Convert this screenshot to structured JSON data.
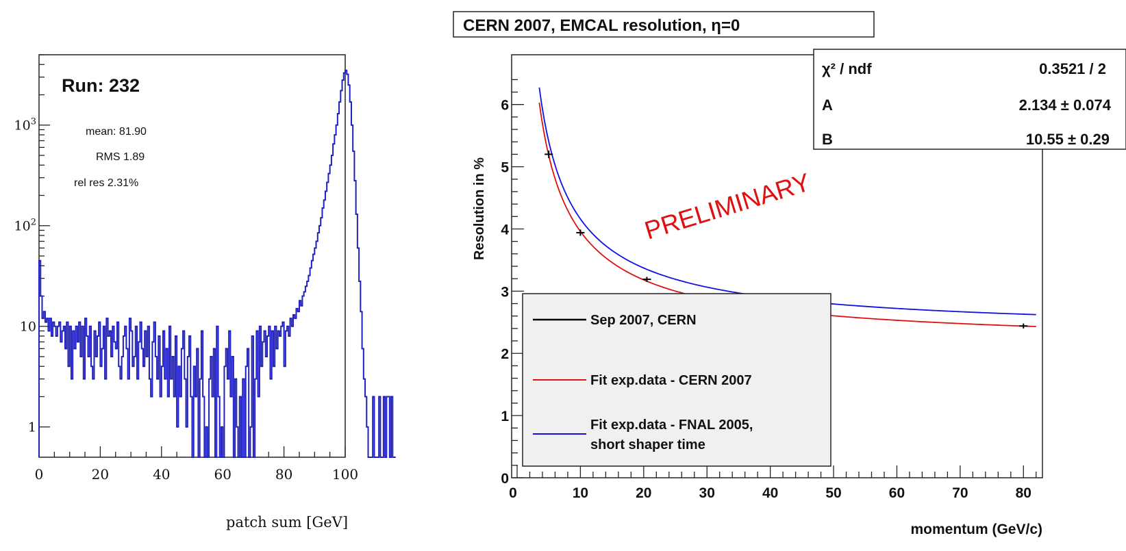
{
  "chart_data": [
    {
      "type": "histogram",
      "title": "",
      "xlabel": "patch sum [GeV]",
      "ylabel": "",
      "xlim": [
        0,
        100
      ],
      "ylim": [
        0.5,
        5000
      ],
      "yscale": "log",
      "x_ticks": [
        "0",
        "20",
        "40",
        "60",
        "80",
        "100"
      ],
      "y_ticks": [
        "1",
        "10",
        "10^2",
        "10^3"
      ],
      "series": [
        {
          "color": "#1f1fbf",
          "bin_width": 0.5,
          "x_start": 0,
          "values": [
            45,
            20,
            12,
            14,
            11,
            12,
            9,
            12,
            8,
            11,
            10,
            8,
            10,
            11,
            7,
            9,
            10,
            6,
            11,
            4,
            10,
            3,
            9,
            6,
            10,
            7,
            11,
            5,
            10,
            3,
            12,
            8,
            5,
            10,
            4,
            3,
            9,
            5,
            8,
            11,
            4,
            6,
            10,
            3,
            12,
            8,
            9,
            5,
            10,
            7,
            6,
            11,
            4,
            3,
            5,
            8,
            10,
            6,
            3,
            12,
            9,
            4,
            5,
            10,
            3,
            7,
            11,
            6,
            4,
            9,
            5,
            10,
            3,
            2,
            7,
            11,
            5,
            3,
            8,
            2,
            4,
            9,
            3,
            6,
            2,
            10,
            3,
            5,
            2,
            8,
            1,
            4,
            2,
            6,
            9,
            3,
            1,
            5,
            8,
            2,
            0.4,
            4,
            2,
            6,
            0.4,
            3,
            9,
            2,
            0.4,
            1,
            0.4,
            3,
            5,
            2,
            6,
            0.4,
            10,
            2,
            0.4,
            1,
            0.4,
            4,
            6,
            3,
            9,
            2,
            5,
            0.4,
            3,
            1,
            0.4,
            2,
            0.4,
            3,
            0.4,
            4,
            6,
            0.4,
            1,
            8,
            0.4,
            3,
            9,
            2,
            10,
            4,
            7,
            9,
            5,
            8,
            10,
            3,
            9,
            4,
            10,
            6,
            9,
            8,
            10,
            11,
            4,
            9,
            10,
            8,
            12,
            10,
            13,
            12,
            15,
            14,
            18,
            16,
            20,
            22,
            25,
            28,
            32,
            38,
            45,
            52,
            60,
            70,
            85,
            100,
            120,
            150,
            180,
            220,
            270,
            330,
            400,
            500,
            650,
            800,
            1000,
            1300,
            1700,
            2200,
            2800,
            3300,
            3500,
            3200,
            2500,
            1700,
            1000,
            550,
            280,
            130,
            60,
            28,
            14,
            6,
            3,
            2,
            1,
            0.4,
            0.4,
            0.4,
            2,
            0.4,
            0.4,
            0.4,
            2,
            0.4,
            0.4,
            2,
            0.4,
            2,
            2,
            0.4,
            2,
            0.4,
            0.4
          ]
        }
      ],
      "annotations": {
        "run": "Run: 232",
        "mean": "mean: 81.90",
        "rms": "RMS 1.89",
        "relres": "rel res 2.31%"
      }
    },
    {
      "type": "line+scatter",
      "title": "CERN 2007, EMCAL resolution, η=0",
      "xlabel": "momentum (GeV/c)",
      "ylabel": "Resolution in %",
      "xlim": [
        0,
        83
      ],
      "ylim": [
        0,
        6.8
      ],
      "x_ticks": [
        "0",
        "10",
        "20",
        "30",
        "40",
        "50",
        "60",
        "70",
        "80"
      ],
      "y_ticks": [
        "0",
        "1",
        "2",
        "3",
        "4",
        "5",
        "6"
      ],
      "watermark": "PRELIMINARY",
      "stats": [
        {
          "label": "χ² / ndf",
          "value": "0.3521 / 2"
        },
        {
          "label": "A",
          "value": "2.134 ± 0.074"
        },
        {
          "label": "B",
          "value": "10.55 ± 0.29"
        }
      ],
      "series": [
        {
          "name": "Sep 2007, CERN",
          "color": "#000000",
          "kind": "points",
          "points": [
            {
              "x": 5,
              "y": 5.2,
              "err": 0.06
            },
            {
              "x": 10,
              "y": 3.94,
              "err": 0.05
            },
            {
              "x": 20.5,
              "y": 3.19,
              "err": 0.04
            },
            {
              "x": 80,
              "y": 2.44,
              "err": 0.04
            }
          ]
        },
        {
          "name": "Fit exp.data - CERN 2007",
          "color": "#e01010",
          "kind": "fit",
          "A": 2.134,
          "B": 10.55,
          "x_range": [
            3.5,
            82
          ]
        },
        {
          "name": "Fit exp.data - FNAL 2005, short shaper time",
          "color": "#1010e0",
          "kind": "fit",
          "A": 2.33,
          "B": 10.9,
          "x_range": [
            3.5,
            82
          ]
        }
      ],
      "legend": {
        "placement": "bottom-left",
        "labels": [
          "Sep 2007, CERN",
          "Fit exp.data - CERN 2007",
          "Fit exp.data - FNAL 2005,",
          "short shaper time"
        ]
      }
    }
  ]
}
